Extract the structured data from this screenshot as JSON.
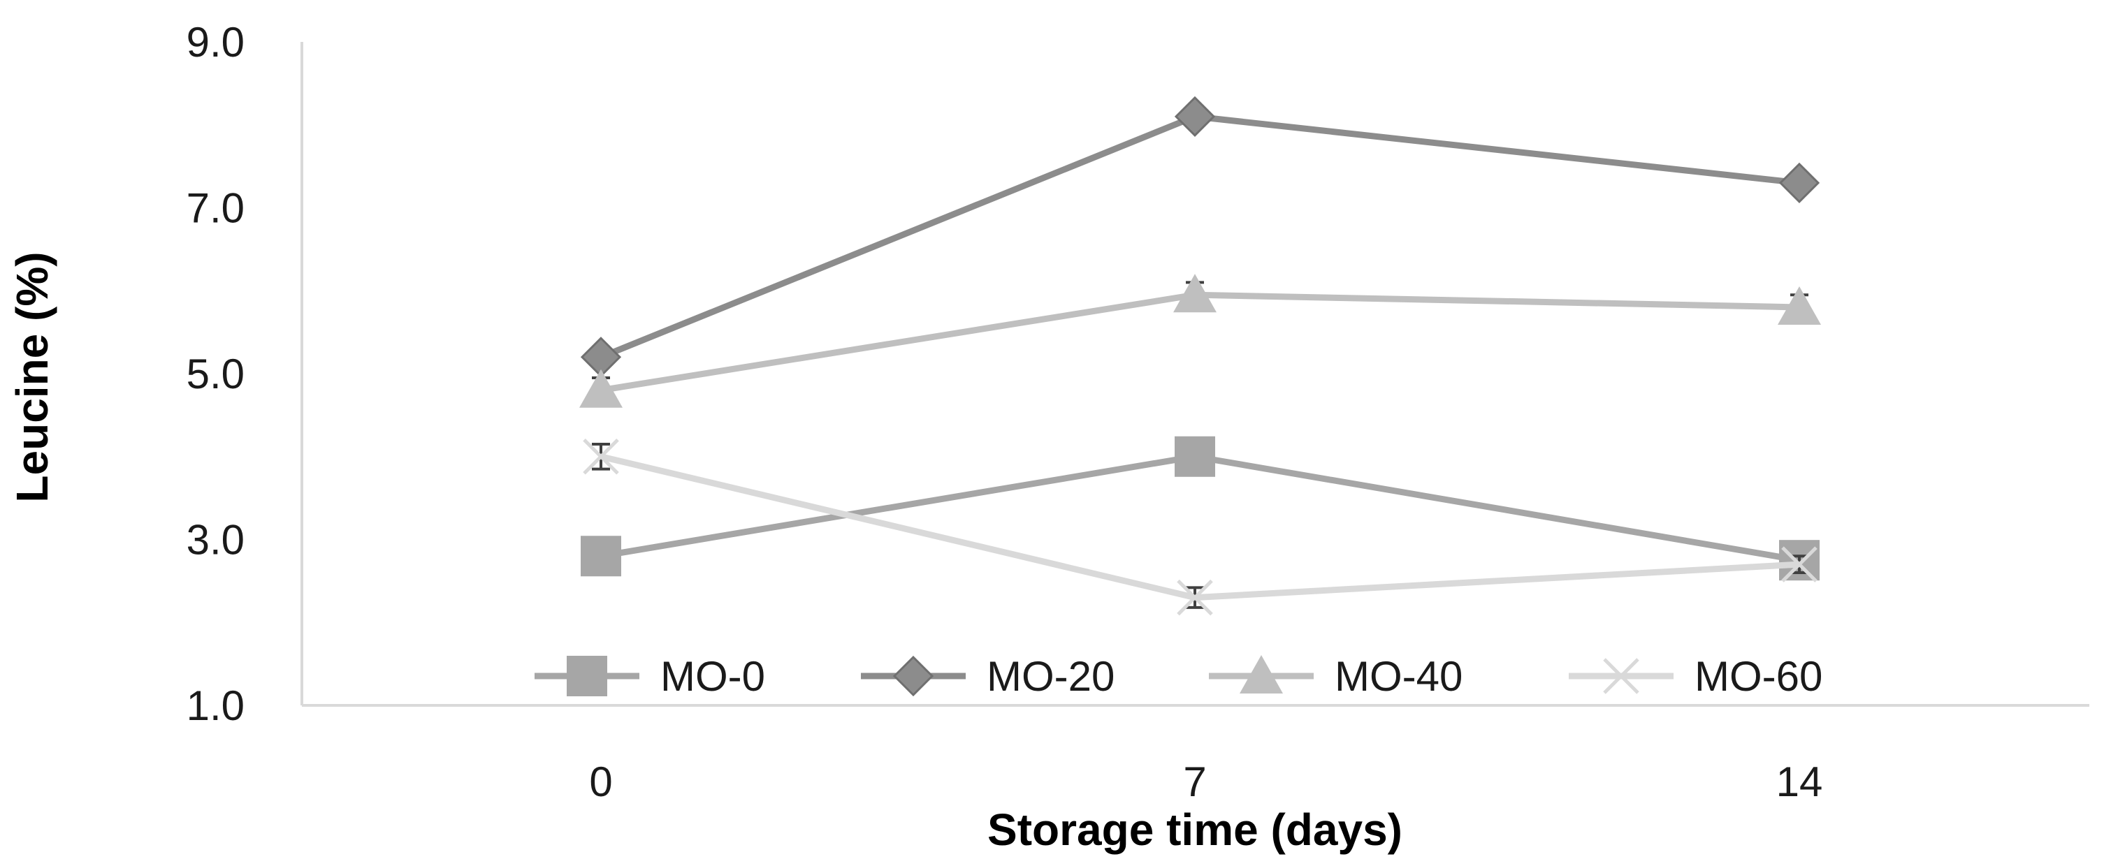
{
  "chart_data": {
    "type": "line",
    "title": "",
    "xlabel": "Storage time (days)",
    "ylabel": "Leucine (%)",
    "categories": [
      "0",
      "7",
      "14"
    ],
    "ylim": [
      1.0,
      9.0
    ],
    "yticks": [
      "1.0",
      "3.0",
      "5.0",
      "7.0",
      "9.0"
    ],
    "grid": false,
    "legend_position": "bottom",
    "series": [
      {
        "name": "MO-0",
        "values": [
          2.8,
          4.0,
          2.75
        ],
        "errors": [
          0.05,
          0.05,
          0.05
        ],
        "marker": "square",
        "color": "#a6a6a6"
      },
      {
        "name": "MO-20",
        "values": [
          5.2,
          8.1,
          7.3
        ],
        "errors": [
          0.12,
          0.12,
          0.12
        ],
        "marker": "diamond",
        "color": "#8c8c8c"
      },
      {
        "name": "MO-40",
        "values": [
          4.8,
          5.95,
          5.8
        ],
        "errors": [
          0.15,
          0.15,
          0.15
        ],
        "marker": "triangle",
        "color": "#bfbfbf"
      },
      {
        "name": "MO-60",
        "values": [
          4.0,
          2.3,
          2.7
        ],
        "errors": [
          0.15,
          0.12,
          0.1
        ],
        "marker": "cross",
        "color": "#d9d9d9"
      }
    ]
  }
}
